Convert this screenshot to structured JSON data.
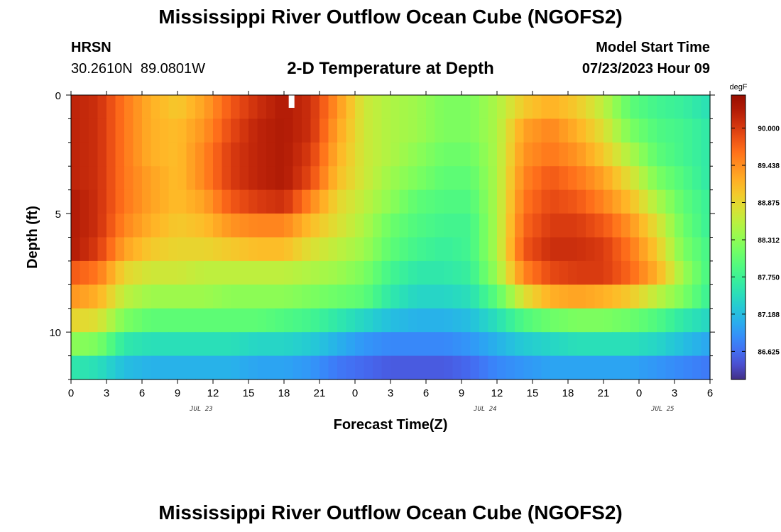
{
  "header": {
    "title": "Mississippi River Outflow Ocean Cube (NGOFS2)",
    "station_name": "HRSN",
    "station_coords": "30.2610N  89.0801W",
    "subtitle": "2-D Temperature at Depth",
    "model_start_label": "Model Start Time",
    "model_start_value": "07/23/2023 Hour 09"
  },
  "footer": {
    "title": "Mississippi River Outflow Ocean Cube (NGOFS2)"
  },
  "colors": {
    "background": "#ffffff",
    "axis": "#000000"
  },
  "chart_data": {
    "type": "heatmap",
    "title": "2-D Temperature at Depth",
    "xlabel": "Forecast Time(Z)",
    "ylabel": "Depth (ft)",
    "x_hours_range": [
      0,
      54
    ],
    "ylim": [
      0,
      12
    ],
    "y_ticks": [
      0,
      5,
      10
    ],
    "x_tick_labels": [
      "0",
      "3",
      "6",
      "9",
      "12",
      "15",
      "18",
      "21",
      "0",
      "3",
      "6",
      "9",
      "12",
      "15",
      "18",
      "21",
      "0",
      "3",
      "6"
    ],
    "date_labels": [
      {
        "hour": 11,
        "text": "JUL 23"
      },
      {
        "hour": 35,
        "text": "JUL 24"
      },
      {
        "hour": 50,
        "text": "JUL 25"
      }
    ],
    "depth_layers": [
      0,
      1,
      2,
      3,
      4,
      5,
      6,
      7,
      8,
      9,
      10,
      11,
      12
    ],
    "colorbar": {
      "unit": "degF",
      "min": 86.2,
      "max": 90.5,
      "labels": [
        "90.000",
        "89.438",
        "88.875",
        "88.312",
        "87.750",
        "87.188",
        "86.625"
      ],
      "label_values": [
        90.0,
        89.438,
        88.875,
        88.312,
        87.75,
        87.188,
        86.625
      ],
      "colormap": "turbo"
    },
    "time_hours": [
      0,
      2.25,
      4.5,
      6.75,
      9,
      11.25,
      13.5,
      15.75,
      18,
      20.25,
      22.5,
      24.75,
      27,
      29.25,
      31.5,
      33.75,
      36,
      38.25,
      40.5,
      42.75,
      45,
      47.25,
      49.5,
      51.75,
      54
    ],
    "temperature_rows": [
      [
        90.2,
        90.1,
        89.6,
        89.2,
        89.0,
        89.3,
        89.8,
        90.1,
        90.3,
        90.1,
        89.4,
        88.7,
        88.5,
        88.4,
        88.2,
        88.2,
        88.5,
        89.0,
        89.2,
        89.0,
        88.6,
        88.0,
        87.8,
        87.7,
        87.5
      ],
      [
        90.2,
        90.1,
        89.6,
        89.2,
        89.1,
        89.4,
        89.9,
        90.2,
        90.3,
        90.1,
        89.3,
        88.7,
        88.5,
        88.4,
        88.2,
        88.2,
        88.5,
        89.3,
        89.5,
        89.2,
        88.8,
        88.2,
        87.9,
        87.8,
        87.6
      ],
      [
        90.2,
        90.1,
        89.6,
        89.2,
        89.1,
        89.5,
        90.0,
        90.2,
        90.3,
        90.0,
        89.2,
        88.7,
        88.5,
        88.3,
        88.1,
        88.1,
        88.5,
        89.4,
        89.6,
        89.4,
        89.0,
        88.5,
        88.0,
        87.8,
        87.6
      ],
      [
        90.2,
        90.1,
        89.6,
        89.3,
        89.1,
        89.5,
        90.0,
        90.2,
        90.3,
        89.9,
        89.1,
        88.7,
        88.4,
        88.2,
        88.0,
        88.0,
        88.5,
        89.5,
        89.8,
        89.6,
        89.3,
        88.8,
        88.2,
        87.9,
        87.6
      ],
      [
        90.3,
        90.1,
        89.6,
        89.3,
        89.1,
        89.3,
        89.8,
        90.0,
        90.1,
        89.5,
        88.9,
        88.6,
        88.3,
        88.0,
        87.9,
        87.9,
        88.5,
        89.6,
        89.9,
        89.8,
        89.5,
        89.1,
        88.5,
        88.0,
        87.7
      ],
      [
        90.3,
        90.1,
        89.5,
        89.2,
        89.0,
        89.1,
        89.4,
        89.5,
        89.5,
        89.1,
        88.8,
        88.5,
        88.1,
        87.9,
        87.8,
        87.8,
        88.5,
        89.7,
        90.0,
        90.0,
        89.8,
        89.4,
        88.8,
        88.1,
        87.7
      ],
      [
        90.3,
        90.0,
        89.3,
        89.0,
        88.9,
        88.9,
        89.0,
        89.1,
        89.1,
        88.8,
        88.6,
        88.4,
        88.0,
        87.8,
        87.7,
        87.8,
        88.5,
        89.8,
        90.1,
        90.1,
        90.0,
        89.6,
        89.0,
        88.2,
        87.8
      ],
      [
        89.8,
        89.6,
        88.9,
        88.7,
        88.7,
        88.6,
        88.6,
        88.6,
        88.6,
        88.5,
        88.4,
        88.2,
        87.8,
        87.6,
        87.6,
        87.7,
        88.4,
        89.5,
        89.9,
        90.0,
        90.0,
        89.7,
        89.2,
        88.4,
        87.8
      ],
      [
        89.4,
        89.2,
        88.6,
        88.4,
        88.4,
        88.4,
        88.3,
        88.3,
        88.3,
        88.2,
        88.1,
        88.0,
        87.6,
        87.4,
        87.4,
        87.5,
        88.0,
        88.8,
        89.2,
        89.3,
        89.2,
        89.0,
        88.6,
        88.2,
        87.7
      ],
      [
        88.9,
        88.8,
        88.2,
        88.0,
        88.0,
        88.0,
        88.0,
        88.0,
        87.9,
        87.8,
        87.6,
        87.4,
        87.2,
        87.1,
        87.1,
        87.2,
        87.5,
        87.9,
        88.1,
        88.2,
        88.2,
        88.1,
        87.9,
        87.6,
        87.4
      ],
      [
        88.3,
        88.2,
        87.6,
        87.5,
        87.5,
        87.5,
        87.5,
        87.4,
        87.4,
        87.3,
        87.1,
        86.9,
        86.8,
        86.8,
        86.8,
        86.9,
        87.1,
        87.3,
        87.4,
        87.5,
        87.5,
        87.5,
        87.4,
        87.2,
        87.0
      ],
      [
        87.6,
        87.5,
        87.2,
        87.1,
        87.1,
        87.1,
        87.1,
        87.0,
        87.0,
        86.9,
        86.7,
        86.6,
        86.5,
        86.5,
        86.5,
        86.6,
        86.8,
        86.9,
        87.0,
        87.0,
        87.0,
        87.0,
        86.9,
        86.8,
        86.7
      ],
      [
        87.2,
        87.1,
        86.9,
        86.8,
        86.8,
        86.8,
        86.8,
        86.7,
        86.7,
        86.6,
        86.5,
        86.4,
        86.3,
        86.2,
        86.3,
        86.4,
        86.5,
        86.6,
        86.6,
        86.6,
        86.6,
        86.6,
        86.6,
        86.5,
        86.5
      ]
    ]
  }
}
